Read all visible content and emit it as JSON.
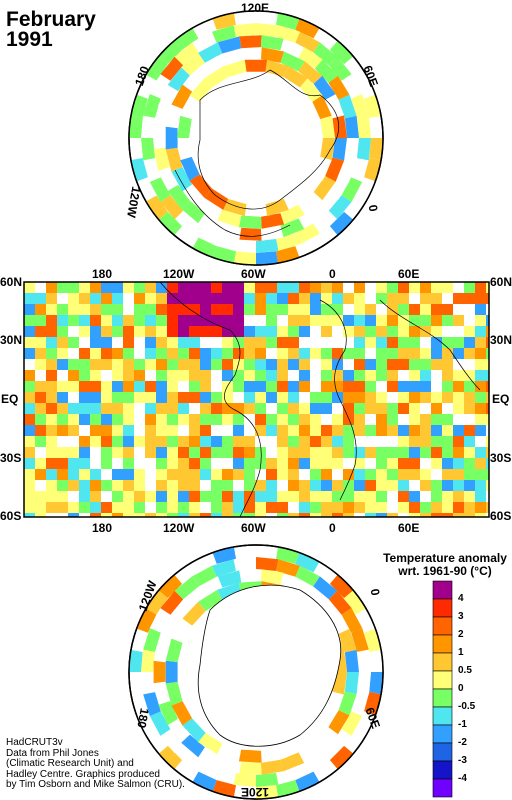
{
  "title": {
    "line1": "February",
    "line2": "1991"
  },
  "map": {
    "lon_labels": [
      "180",
      "120W",
      "60W",
      "0",
      "60E"
    ],
    "lat_labels": [
      "60N",
      "30N",
      "EQ",
      "30S",
      "60S"
    ],
    "north_polar_labels": [
      "120E",
      "180",
      "60E",
      "120W",
      "0"
    ],
    "south_polar_labels": [
      "120W",
      "0",
      "180",
      "60E",
      "120E"
    ]
  },
  "legend": {
    "title_line1": "Temperature anomaly",
    "title_line2": "wrt. 1961-90  (°C)",
    "labels": [
      "4",
      "3",
      "2",
      "1",
      "0.5",
      "0",
      "-0.5",
      "-1",
      "-2",
      "-3",
      "-4"
    ],
    "colors": [
      "#a0008c",
      "#ff2a00",
      "#ff6400",
      "#ff9600",
      "#ffc832",
      "#ffff78",
      "#78ff64",
      "#50e6f0",
      "#32a0ff",
      "#2064e6",
      "#1414c8",
      "#7000ff"
    ]
  },
  "credits": [
    "HadCRUT3v",
    "Data from Phil Jones",
    "(Climatic Research Unit) and",
    "Hadley Centre.  Graphics produced",
    "by Tim Osborn and Mike Salmon (CRU)."
  ]
}
